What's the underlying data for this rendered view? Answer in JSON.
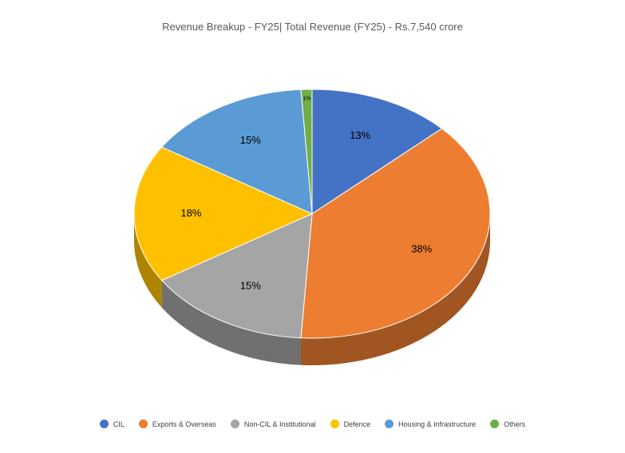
{
  "chart_data": {
    "type": "pie",
    "title": "Revenue Breakup - FY25| Total Revenue (FY25) - Rs.7,540 crore",
    "legend_position": "bottom",
    "three_d": true,
    "slices": [
      {
        "name": "CIL",
        "value": 13,
        "label": "13%",
        "color": "#4472C4"
      },
      {
        "name": "Exports & Overseas",
        "value": 38,
        "label": "38%",
        "color": "#ED7D31"
      },
      {
        "name": "Non-CIL & Institutional",
        "value": 15,
        "label": "15%",
        "color": "#A5A5A5"
      },
      {
        "name": "Defence",
        "value": 18,
        "label": "18%",
        "color": "#FFC000"
      },
      {
        "name": "Housing & Infrastructure",
        "value": 15,
        "label": "15%",
        "color": "#5B9BD5"
      },
      {
        "name": "Others",
        "value": 1,
        "label": "1%",
        "color": "#70AD47"
      }
    ]
  }
}
